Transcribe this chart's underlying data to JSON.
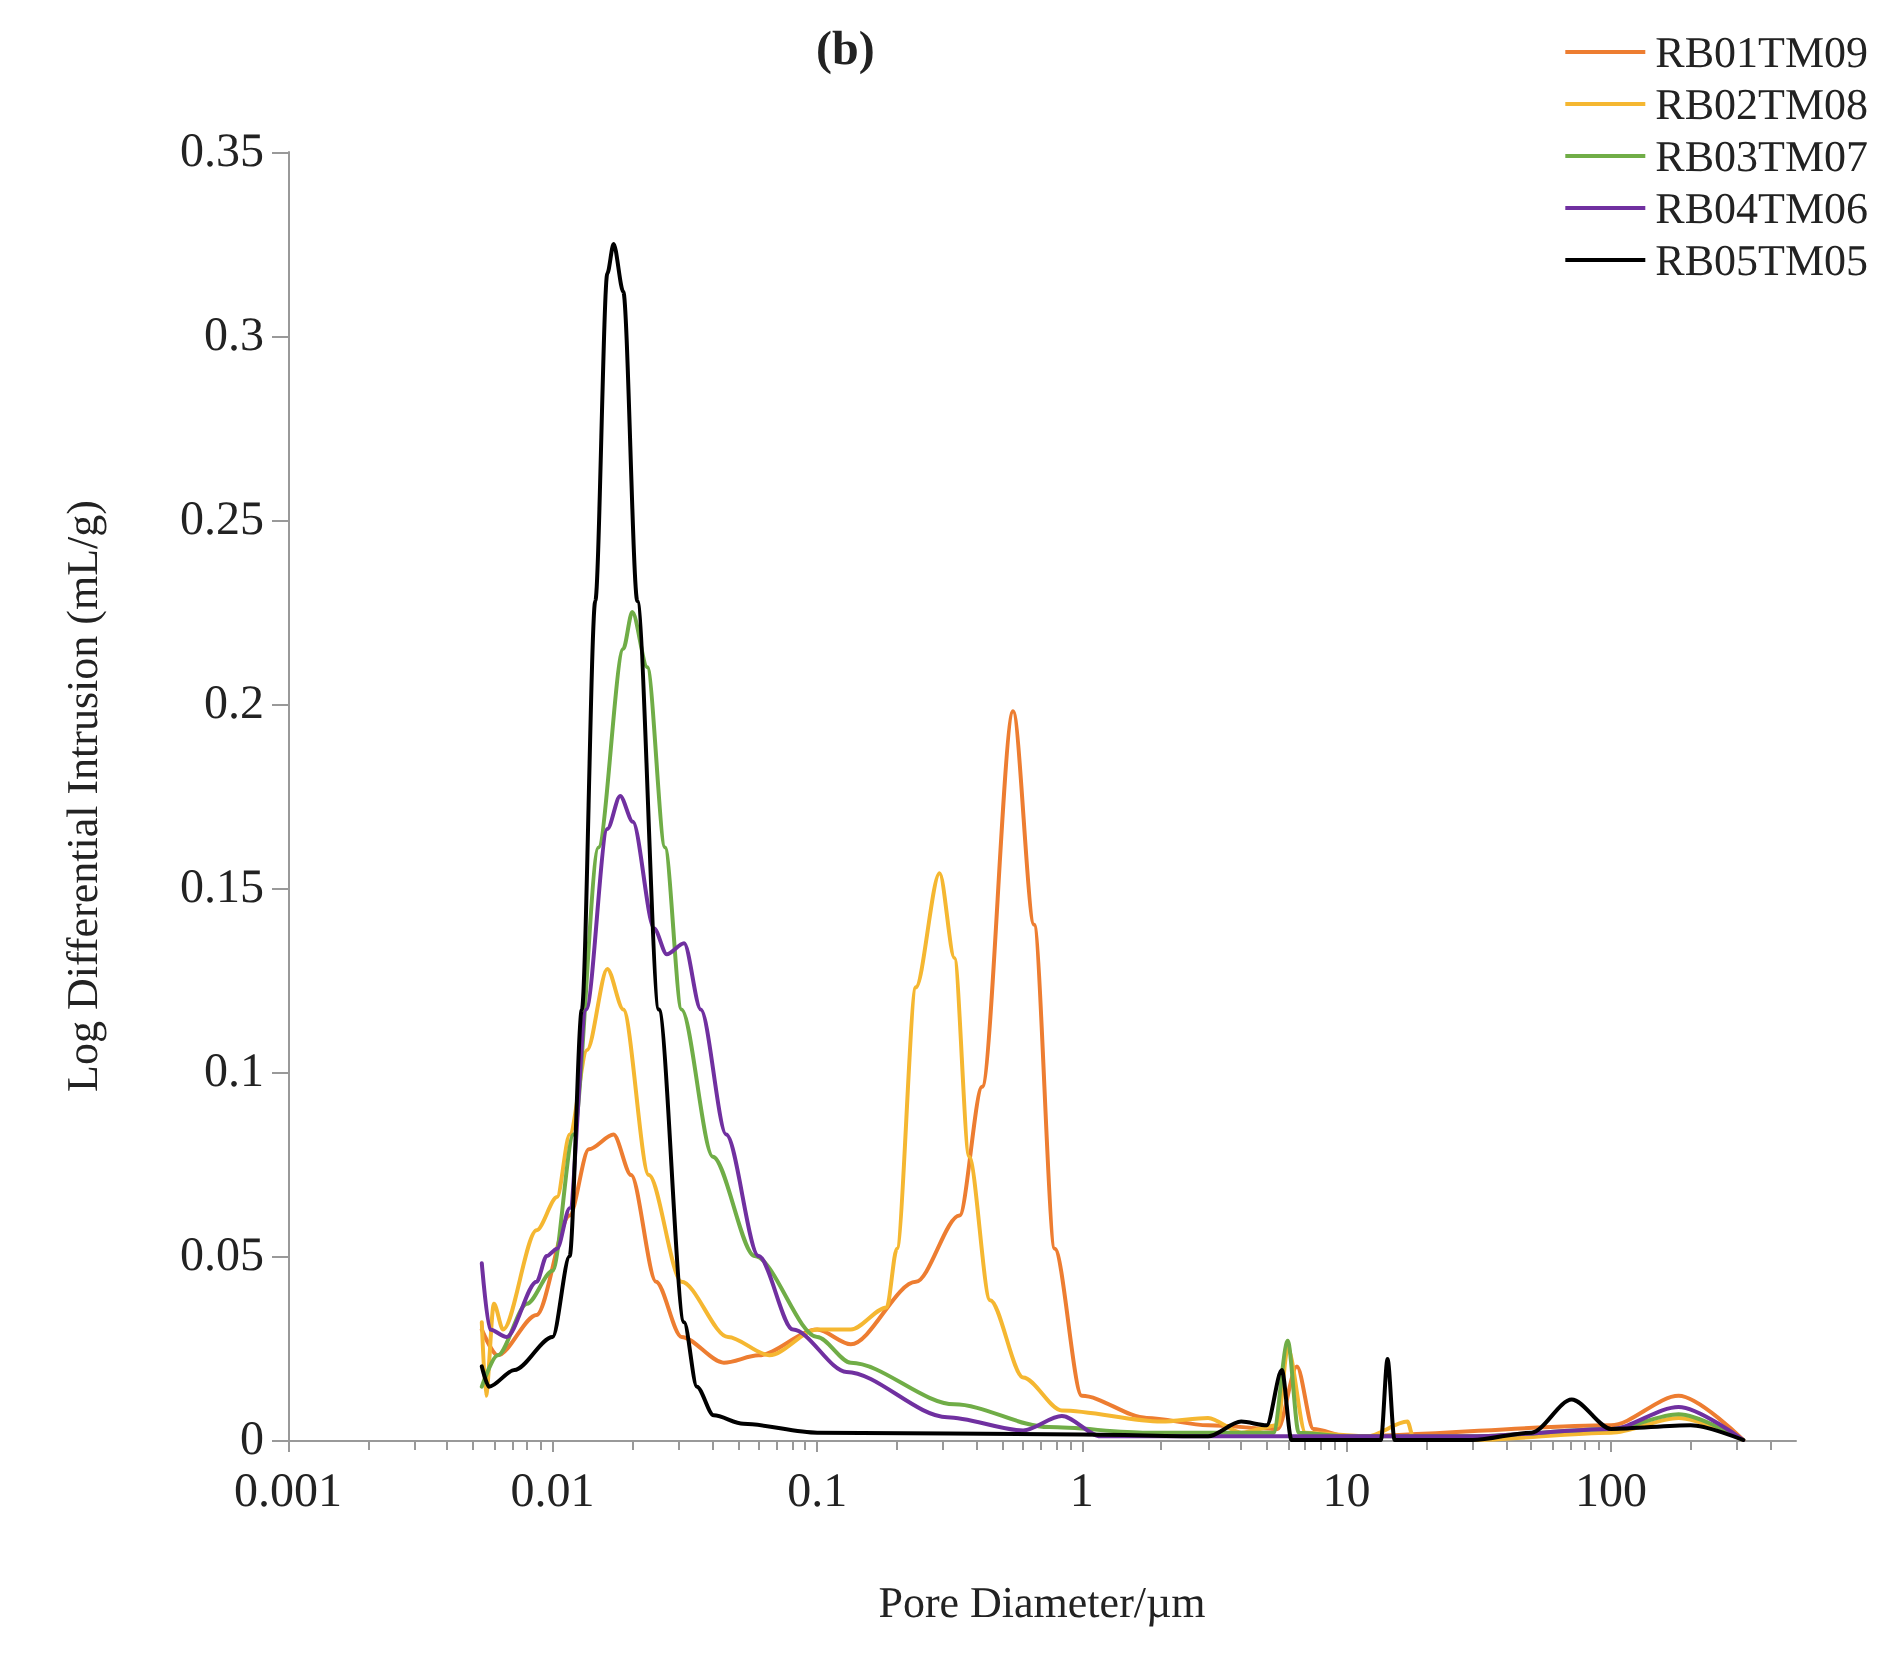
{
  "chart_data": {
    "type": "line",
    "title": "(b)",
    "xlabel": "Pore Diameter/µm",
    "ylabel": "Log Differential Intrusion (mL/g)",
    "log": "x",
    "xlim": [
      0.001,
      500
    ],
    "xticks": [
      0.001,
      0.01,
      0.1,
      1,
      10,
      100
    ],
    "ylim": [
      0,
      0.35
    ],
    "yticks": [
      0,
      0.05,
      0.1,
      0.15,
      0.2,
      0.25,
      0.3,
      0.35
    ],
    "grid": false,
    "legend": "top right",
    "marker": "none",
    "line_style": "solid",
    "series": [
      {
        "name": "RB01TM09",
        "color": "#ed7d31",
        "x": [
          0.0054,
          0.0062,
          0.0087,
          0.0116,
          0.0137,
          0.017,
          0.0198,
          0.0246,
          0.0307,
          0.0444,
          0.06,
          0.1,
          0.134,
          0.236,
          0.345,
          0.42,
          0.55,
          0.66,
          0.79,
          1.0,
          1.76,
          3.0,
          5.5,
          6.5,
          7.5,
          10,
          100,
          180,
          316
        ],
        "values": [
          0.03,
          0.023,
          0.034,
          0.061,
          0.079,
          0.083,
          0.072,
          0.043,
          0.028,
          0.021,
          0.023,
          0.03,
          0.026,
          0.043,
          0.061,
          0.096,
          0.198,
          0.14,
          0.052,
          0.012,
          0.006,
          0.004,
          0.003,
          0.02,
          0.003,
          0.001,
          0.004,
          0.012,
          0
        ]
      },
      {
        "name": "RB02TM08",
        "color": "#f5b731",
        "x": [
          0.0054,
          0.0056,
          0.006,
          0.0065,
          0.0087,
          0.0104,
          0.0116,
          0.0135,
          0.0161,
          0.0185,
          0.0231,
          0.0307,
          0.046,
          0.066,
          0.1,
          0.134,
          0.183,
          0.2,
          0.236,
          0.29,
          0.33,
          0.375,
          0.45,
          0.6,
          0.84,
          2.0,
          3.0,
          4.0,
          5.5,
          6.0,
          7.0,
          12,
          17,
          18,
          30,
          100,
          180,
          316
        ],
        "values": [
          0.032,
          0.012,
          0.037,
          0.03,
          0.057,
          0.066,
          0.083,
          0.106,
          0.128,
          0.117,
          0.072,
          0.043,
          0.028,
          0.023,
          0.03,
          0.03,
          0.036,
          0.052,
          0.123,
          0.154,
          0.131,
          0.077,
          0.038,
          0.017,
          0.008,
          0.005,
          0.006,
          0.002,
          0.004,
          0.025,
          0.002,
          0.001,
          0.005,
          0,
          0,
          0.002,
          0.006,
          0
        ]
      },
      {
        "name": "RB03TM07",
        "color": "#70ad47",
        "x": [
          0.0054,
          0.0062,
          0.008,
          0.01,
          0.012,
          0.0149,
          0.0185,
          0.02,
          0.0228,
          0.0266,
          0.0307,
          0.0403,
          0.058,
          0.1,
          0.134,
          0.33,
          0.75,
          1.76,
          5.3,
          6.0,
          6.6,
          10,
          30,
          100,
          180,
          316
        ],
        "values": [
          0.0145,
          0.023,
          0.037,
          0.046,
          0.083,
          0.161,
          0.215,
          0.225,
          0.21,
          0.161,
          0.117,
          0.077,
          0.05,
          0.028,
          0.021,
          0.0097,
          0.0035,
          0.002,
          0.002,
          0.027,
          0.002,
          0.001,
          0.001,
          0.003,
          0.007,
          0
        ]
      },
      {
        "name": "RB04TM06",
        "color": "#7030a0",
        "x": [
          0.0054,
          0.0058,
          0.0067,
          0.0087,
          0.0095,
          0.0104,
          0.0116,
          0.0134,
          0.0161,
          0.018,
          0.0201,
          0.0242,
          0.027,
          0.0314,
          0.0363,
          0.0453,
          0.06,
          0.081,
          0.129,
          0.31,
          0.6,
          0.84,
          1.18,
          3.0,
          10,
          30,
          100,
          180,
          316
        ],
        "values": [
          0.048,
          0.03,
          0.028,
          0.043,
          0.05,
          0.052,
          0.063,
          0.117,
          0.166,
          0.175,
          0.168,
          0.139,
          0.132,
          0.135,
          0.117,
          0.083,
          0.05,
          0.03,
          0.0185,
          0.0062,
          0.0026,
          0.0065,
          0.001,
          0.001,
          0.001,
          0.001,
          0.003,
          0.009,
          0
        ]
      },
      {
        "name": "RB05TM05",
        "color": "#000000",
        "x": [
          0.0054,
          0.00575,
          0.00717,
          0.01,
          0.0116,
          0.0129,
          0.0145,
          0.0161,
          0.017,
          0.0185,
          0.0209,
          0.0252,
          0.0314,
          0.0351,
          0.0406,
          0.0526,
          0.1,
          1.0,
          3.0,
          4.0,
          5.0,
          5.7,
          6.2,
          10,
          13.5,
          14.3,
          15.2,
          30,
          50,
          71,
          100,
          200,
          316
        ],
        "values": [
          0.02,
          0.0145,
          0.019,
          0.028,
          0.05,
          0.117,
          0.228,
          0.317,
          0.325,
          0.312,
          0.228,
          0.117,
          0.032,
          0.0145,
          0.0067,
          0.0044,
          0.002,
          0.0015,
          0.001,
          0.005,
          0.004,
          0.019,
          0,
          0,
          0,
          0.022,
          0,
          0,
          0.002,
          0.011,
          0.003,
          0.004,
          0
        ]
      }
    ]
  }
}
